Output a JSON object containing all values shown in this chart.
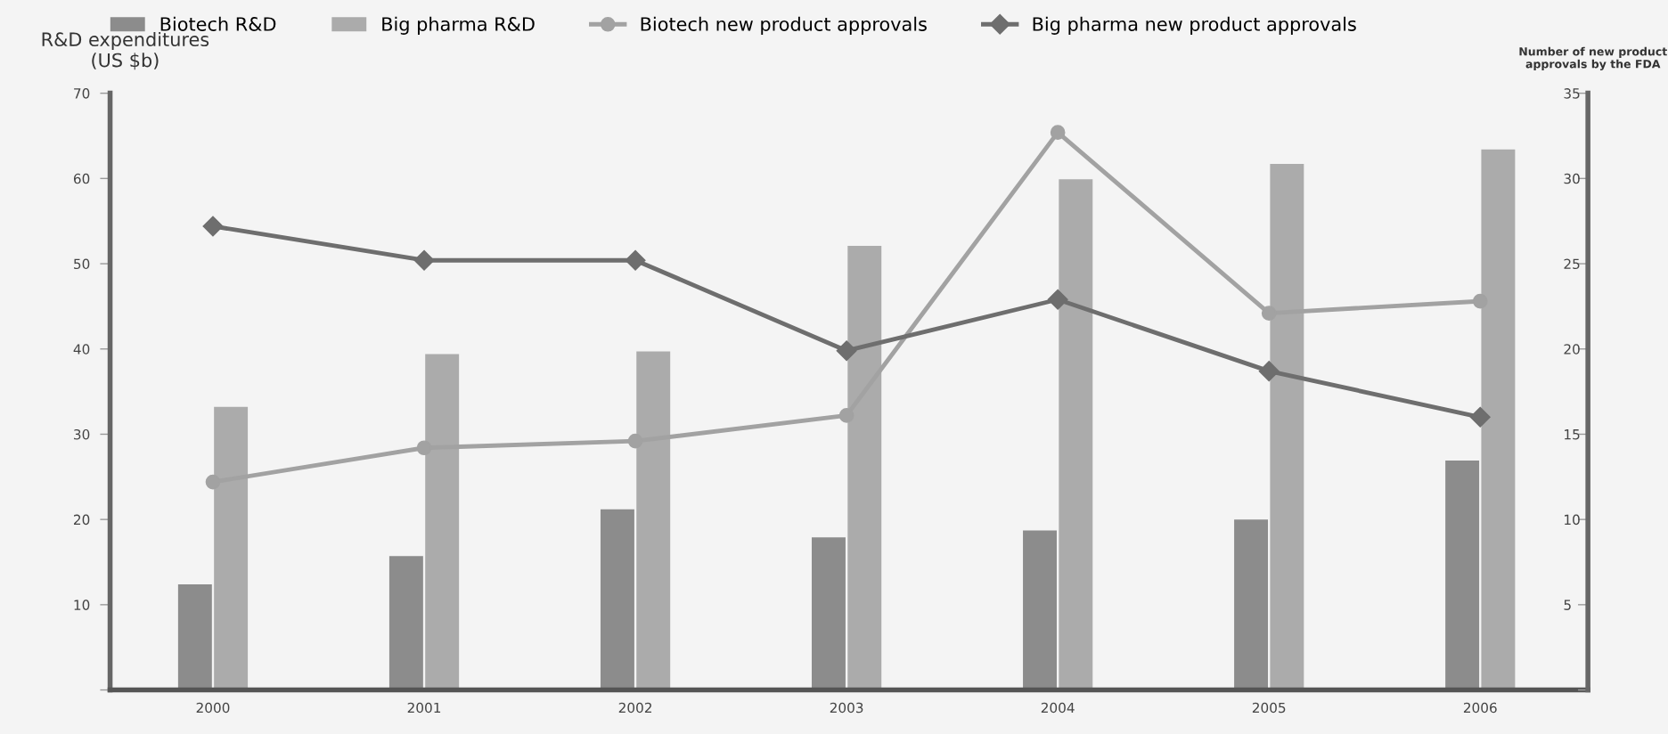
{
  "chart_data": {
    "type": "bar",
    "ylabel": "R&D expenditures\n(US $b)",
    "y2label": "Number of new product\napprovals by the FDA",
    "categories": [
      "2000",
      "2001",
      "2002",
      "2003",
      "2004",
      "2005",
      "2006"
    ],
    "series": [
      {
        "name": "Biotech R&D",
        "color": "#8c8c8c",
        "values": [
          12.4,
          15.7,
          21.2,
          17.9,
          18.7,
          20.0,
          26.9
        ]
      },
      {
        "name": "Big pharma R&D",
        "color": "#ababab",
        "values": [
          33.2,
          39.4,
          39.7,
          52.1,
          59.9,
          61.7,
          63.4
        ]
      },
      {
        "name": "Biotech new product approvals",
        "type": "line",
        "axis": "y2",
        "marker": "circle",
        "color": "#a2a2a2",
        "values": [
          12.2,
          14.2,
          14.6,
          16.1,
          32.7,
          22.1,
          22.8
        ]
      },
      {
        "name": "Big pharma new product approvals",
        "type": "line",
        "axis": "y2",
        "marker": "diamond",
        "color": "#6e6e6e",
        "values": [
          27.2,
          25.2,
          25.2,
          19.9,
          22.9,
          18.7,
          16.0
        ]
      }
    ],
    "ylim": [
      0,
      70
    ],
    "yticks": [
      {
        "value": 0,
        "label": null
      },
      10,
      20,
      30,
      40,
      50,
      60,
      70
    ],
    "y2lim": [
      0,
      35
    ],
    "y2ticks": [
      {
        "value": 0,
        "label": null
      },
      5,
      10,
      15,
      20,
      25,
      30,
      35
    ],
    "legend": "top",
    "grid": false
  }
}
